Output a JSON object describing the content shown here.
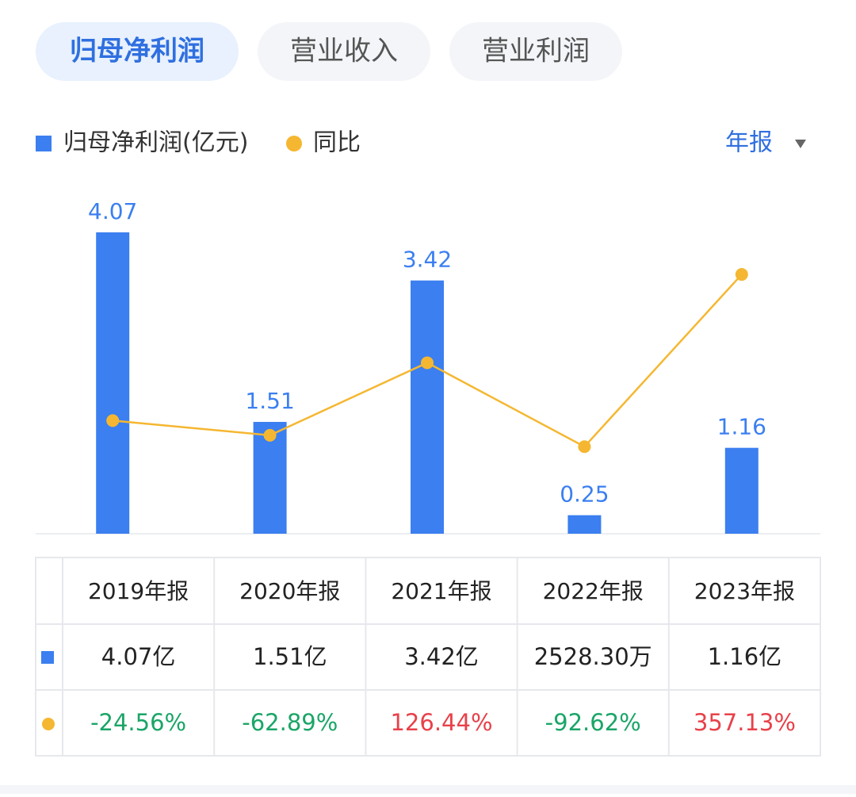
{
  "tabs": [
    "归母净利润",
    "营业收入",
    "营业利润"
  ],
  "period": "年报",
  "chart_data": {
    "type": "bar-line",
    "categories": [
      null,
      null,
      null,
      null,
      null
    ],
    "series": [
      {
        "name": "归母净利润(亿元)",
        "color": "#3b7ff0",
        "type": "bar",
        "values": [
          4.07,
          1.51,
          3.42,
          0.25,
          1.16
        ]
      },
      {
        "name": "同比",
        "color": "#f5b731",
        "type": "line",
        "axis": "y2",
        "values": [
          -24.56,
          -62.89,
          126.44,
          -92.62,
          357.13
        ]
      }
    ],
    "ylim": [
      0,
      4.07
    ],
    "y2lim": [
      -320,
      467
    ]
  },
  "table": {
    "header": [
      "2019年报",
      "2020年报",
      "2021年报",
      "2022年报",
      "2023年报"
    ],
    "rows": [
      [
        "4.07亿",
        "1.51亿",
        "3.42亿",
        "2528.30万",
        "1.16亿"
      ],
      [
        "-24.56%",
        "-62.89%",
        "126.44%",
        "-92.62%",
        "357.13%"
      ]
    ]
  }
}
